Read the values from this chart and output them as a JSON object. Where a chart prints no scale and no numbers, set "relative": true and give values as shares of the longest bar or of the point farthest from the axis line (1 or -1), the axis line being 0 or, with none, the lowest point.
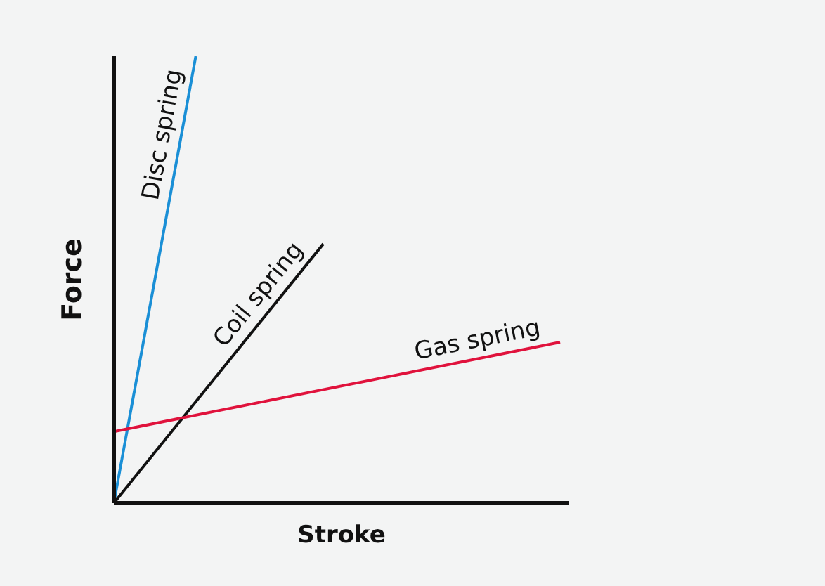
{
  "chart_data": {
    "type": "line",
    "relative": true,
    "xlabel": "Stroke",
    "ylabel": "Force",
    "legend": false,
    "grid": false,
    "categories": [
      null,
      null,
      null,
      null,
      null,
      null,
      null,
      null,
      null,
      null,
      null,
      null,
      null,
      null,
      null,
      null,
      null,
      null,
      null,
      null,
      null,
      null,
      null,
      null,
      null,
      null,
      null,
      null,
      null,
      null,
      null,
      null,
      null,
      null,
      null,
      null,
      null,
      null,
      null,
      null,
      null,
      null,
      null,
      null,
      null,
      null,
      null,
      null,
      null,
      null,
      null
    ],
    "series": [
      {
        "name": "Disc spring",
        "color": "#1a8fd6",
        "values": [
          0,
          null,
          null,
          null,
          null,
          null,
          null,
          null,
          null,
          1,
          null,
          null,
          null,
          null,
          null,
          null,
          null,
          null,
          null,
          null,
          null,
          null,
          null,
          null,
          null,
          null,
          null,
          null,
          null,
          null,
          null,
          null,
          null,
          null,
          null,
          null,
          null,
          null,
          null,
          null,
          null,
          null,
          null,
          null,
          null,
          null,
          null,
          null,
          null,
          null,
          null
        ]
      },
      {
        "name": "Coil spring",
        "color": "#111111",
        "values": [
          0,
          null,
          null,
          null,
          null,
          null,
          null,
          null,
          null,
          null,
          null,
          null,
          null,
          null,
          null,
          null,
          null,
          null,
          null,
          null,
          null,
          null,
          null,
          0.58,
          null,
          null,
          null,
          null,
          null,
          null,
          null,
          null,
          null,
          null,
          null,
          null,
          null,
          null,
          null,
          null,
          null,
          null,
          null,
          null,
          null,
          null,
          null,
          null,
          null,
          null,
          null
        ]
      },
      {
        "name": "Gas spring",
        "color": "#e0123c",
        "values": [
          0.16,
          null,
          null,
          null,
          null,
          null,
          null,
          null,
          null,
          null,
          null,
          null,
          null,
          null,
          null,
          null,
          null,
          null,
          null,
          null,
          null,
          null,
          null,
          null,
          null,
          null,
          null,
          null,
          null,
          null,
          null,
          null,
          null,
          null,
          null,
          null,
          null,
          null,
          null,
          null,
          null,
          null,
          null,
          null,
          null,
          null,
          null,
          null,
          null,
          0.36,
          null
        ]
      }
    ]
  }
}
